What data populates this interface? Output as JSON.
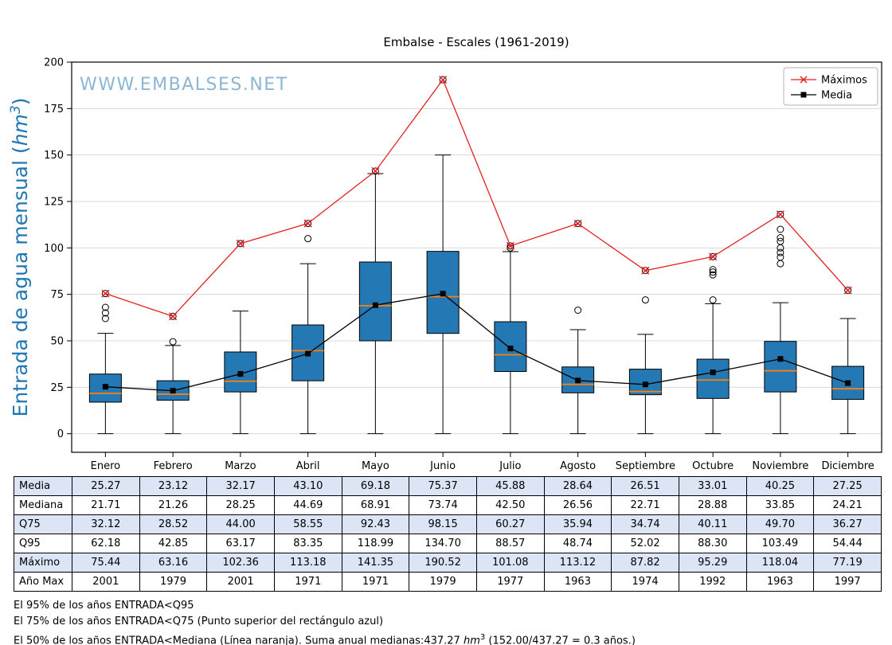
{
  "title": "Embalse - Escales (1961-2019)",
  "watermark": "WWW.EMBALSES.NET",
  "ylabel": {
    "prefix": "Entrada de agua mensual (",
    "unit": "hm",
    "exp": "3",
    "suffix": ")"
  },
  "colors": {
    "box_fill": "#2478b4",
    "box_edge": "#000000",
    "median": "#ff7f0e",
    "max_line": "#e32020",
    "mean_line": "#000000",
    "grid": "#d8d8d8",
    "ylabel_blue": "#1f77b4",
    "watermark_blue": "#8cb6d6",
    "table_row_alt": "#dbe5f6"
  },
  "chart_data": {
    "type": "boxplot",
    "title": "Embalse - Escales (1961-2019)",
    "ylabel": "Entrada de agua mensual (hm3)",
    "categories": [
      "Enero",
      "Febrero",
      "Marzo",
      "Abril",
      "Mayo",
      "Junio",
      "Julio",
      "Agosto",
      "Septiembre",
      "Octubre",
      "Noviembre",
      "Diciembre"
    ],
    "ylim": [
      0,
      200
    ],
    "yticks": [
      0,
      25,
      50,
      75,
      100,
      125,
      150,
      175,
      200
    ],
    "grid": "horizontal",
    "legend_position": "top-right",
    "series": [
      {
        "name": "Máximos",
        "marker": "x",
        "color": "#e32020",
        "values": [
          75.44,
          63.16,
          102.36,
          113.18,
          141.35,
          190.52,
          101.08,
          113.12,
          87.82,
          95.29,
          118.04,
          77.19
        ]
      },
      {
        "name": "Media",
        "marker": "square",
        "color": "#000000",
        "values": [
          25.27,
          23.12,
          32.17,
          43.1,
          69.18,
          75.37,
          45.88,
          28.64,
          26.51,
          33.01,
          40.25,
          27.25
        ]
      }
    ],
    "boxes": {
      "q1": [
        17.0,
        18.0,
        22.5,
        28.5,
        50.0,
        54.0,
        33.5,
        22.0,
        21.0,
        19.0,
        22.5,
        18.5
      ],
      "median": [
        21.71,
        21.26,
        28.25,
        44.69,
        68.91,
        73.74,
        42.5,
        26.56,
        22.71,
        28.88,
        33.85,
        24.21
      ],
      "q3": [
        32.12,
        28.52,
        44.0,
        58.55,
        92.43,
        98.15,
        60.27,
        35.94,
        34.74,
        40.11,
        49.7,
        36.27
      ],
      "whisker_low": [
        0,
        0,
        0,
        0,
        0,
        0,
        0,
        0,
        0,
        0,
        0,
        0
      ],
      "whisker_high": [
        54,
        47.5,
        66,
        91.5,
        140,
        150,
        98,
        56,
        53.5,
        70,
        70.5,
        62
      ],
      "outliers": [
        [
          62,
          65,
          68,
          75.44
        ],
        [
          49.5,
          63.16
        ],
        [
          102.36
        ],
        [
          105,
          113.18
        ],
        [
          141.35
        ],
        [
          190.52
        ],
        [
          100,
          101.08
        ],
        [
          66.5,
          113.12
        ],
        [
          72,
          87.82
        ],
        [
          72,
          85.5,
          87,
          88.3,
          95.29
        ],
        [
          91.5,
          95,
          97.5,
          100,
          103.5,
          105.5,
          110,
          118.04
        ],
        [
          77.19
        ]
      ]
    }
  },
  "table": {
    "row_headers": [
      "Media",
      "Mediana",
      "Q75",
      "Q95",
      "Máximo",
      "Año Max"
    ],
    "rows": [
      [
        "25.27",
        "23.12",
        "32.17",
        "43.10",
        "69.18",
        "75.37",
        "45.88",
        "28.64",
        "26.51",
        "33.01",
        "40.25",
        "27.25"
      ],
      [
        "21.71",
        "21.26",
        "28.25",
        "44.69",
        "68.91",
        "73.74",
        "42.50",
        "26.56",
        "22.71",
        "28.88",
        "33.85",
        "24.21"
      ],
      [
        "32.12",
        "28.52",
        "44.00",
        "58.55",
        "92.43",
        "98.15",
        "60.27",
        "35.94",
        "34.74",
        "40.11",
        "49.70",
        "36.27"
      ],
      [
        "62.18",
        "42.85",
        "63.17",
        "83.35",
        "118.99",
        "134.70",
        "88.57",
        "48.74",
        "52.02",
        "88.30",
        "103.49",
        "54.44"
      ],
      [
        "75.44",
        "63.16",
        "102.36",
        "113.18",
        "141.35",
        "190.52",
        "101.08",
        "113.12",
        "87.82",
        "95.29",
        "118.04",
        "77.19"
      ],
      [
        "2001",
        "1979",
        "2001",
        "1971",
        "1971",
        "1979",
        "1977",
        "1963",
        "1974",
        "1992",
        "1963",
        "1997"
      ]
    ]
  },
  "footnotes": {
    "line1": "El 95% de los años ENTRADA<Q95",
    "line2": "El 75% de los años ENTRADA<Q75 (Punto superior del rectángulo azul)",
    "line3_before": "El 50% de los años ENTRADA<Mediana (Línea naranja). Suma anual medianas:437.27 ",
    "line3_unit": "hm",
    "line3_exp": "3",
    "line3_after": " (152.00/437.27 = 0.3 años.)"
  }
}
